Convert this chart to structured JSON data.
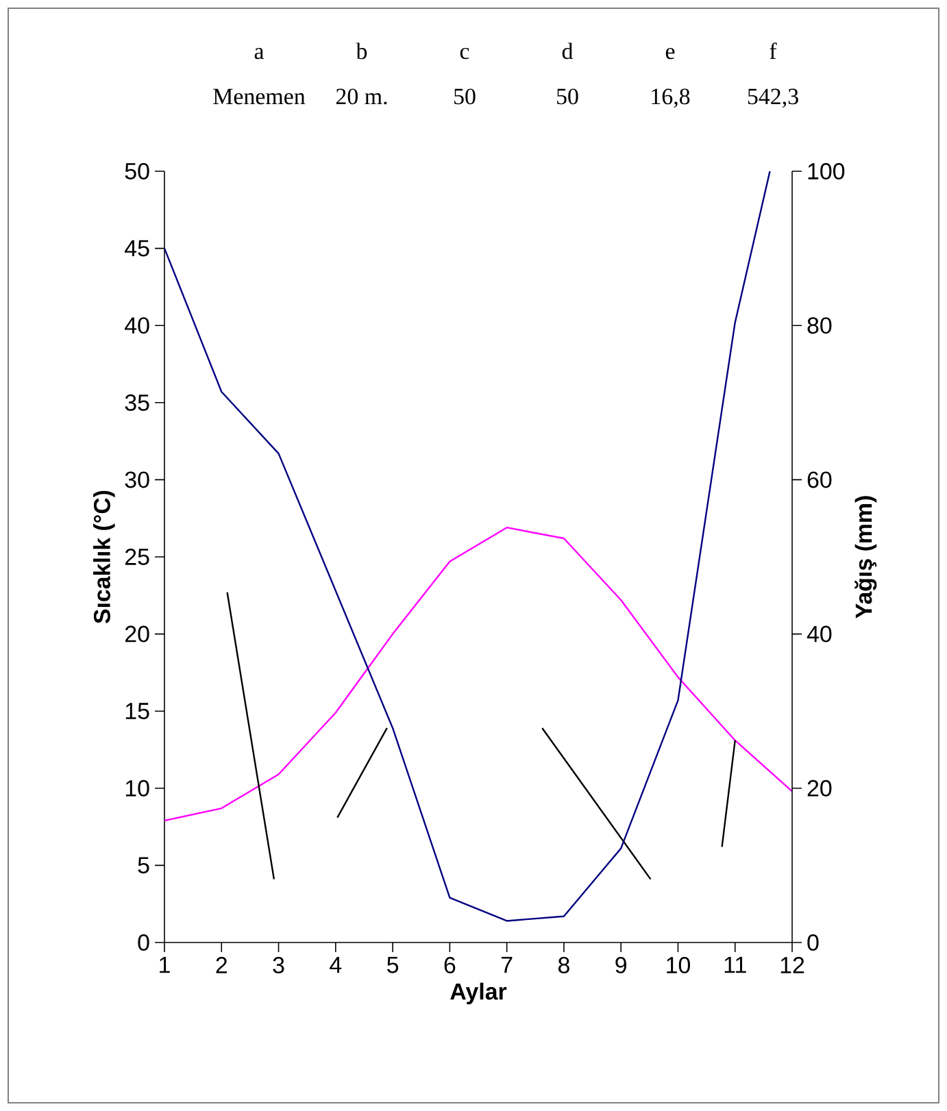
{
  "chart_data": {
    "type": "line",
    "xlabel": "Aylar",
    "ylabel": "Sıcaklık (°C)",
    "y2label": "Yağış (mm)",
    "x": [
      1,
      2,
      3,
      4,
      5,
      6,
      7,
      8,
      9,
      10,
      11,
      12
    ],
    "xlim": [
      1,
      12
    ],
    "xticks": [
      1,
      2,
      3,
      4,
      5,
      6,
      7,
      8,
      9,
      10,
      11,
      12
    ],
    "ylim": [
      0,
      50
    ],
    "yticks": [
      0,
      5,
      10,
      15,
      20,
      25,
      30,
      35,
      40,
      45,
      50
    ],
    "y2lim": [
      0,
      100
    ],
    "y2ticks": [
      0,
      20,
      40,
      60,
      80,
      100
    ],
    "grid": false,
    "marker": "none",
    "line_style": "solid",
    "annotations": [
      "a",
      "b",
      "c",
      "d",
      "e",
      "f",
      "Menemen",
      "20 m.",
      "50",
      "50",
      "16,8",
      "542,3"
    ],
    "series": [
      {
        "color": "#ff00ff",
        "values": [
          7.9,
          8.7,
          10.9,
          14.9,
          20.0,
          24.7,
          26.9,
          26.2,
          22.2,
          17.2,
          13.1,
          9.8
        ]
      },
      {
        "color": "#000080",
        "axis": "y2",
        "x": [
          1,
          2,
          3,
          4,
          5,
          6,
          7,
          8,
          9,
          10,
          11,
          11.61
        ],
        "values": [
          90,
          71.4,
          63.4,
          45.6,
          27.8,
          5.8,
          2.8,
          3.4,
          12.2,
          31.4,
          80.4,
          100
        ]
      },
      {
        "color": "#000000",
        "x": [
          2.1,
          2.92
        ],
        "values": [
          22.7,
          4.1
        ]
      },
      {
        "color": "#000000",
        "x": [
          4.03,
          4.9
        ],
        "values": [
          8.1,
          13.9
        ]
      },
      {
        "color": "#000000",
        "x": [
          7.62,
          9.52
        ],
        "values": [
          13.9,
          4.1
        ]
      },
      {
        "color": "#000000",
        "x": [
          10.77,
          11.0
        ],
        "values": [
          6.2,
          13.1
        ]
      }
    ]
  }
}
